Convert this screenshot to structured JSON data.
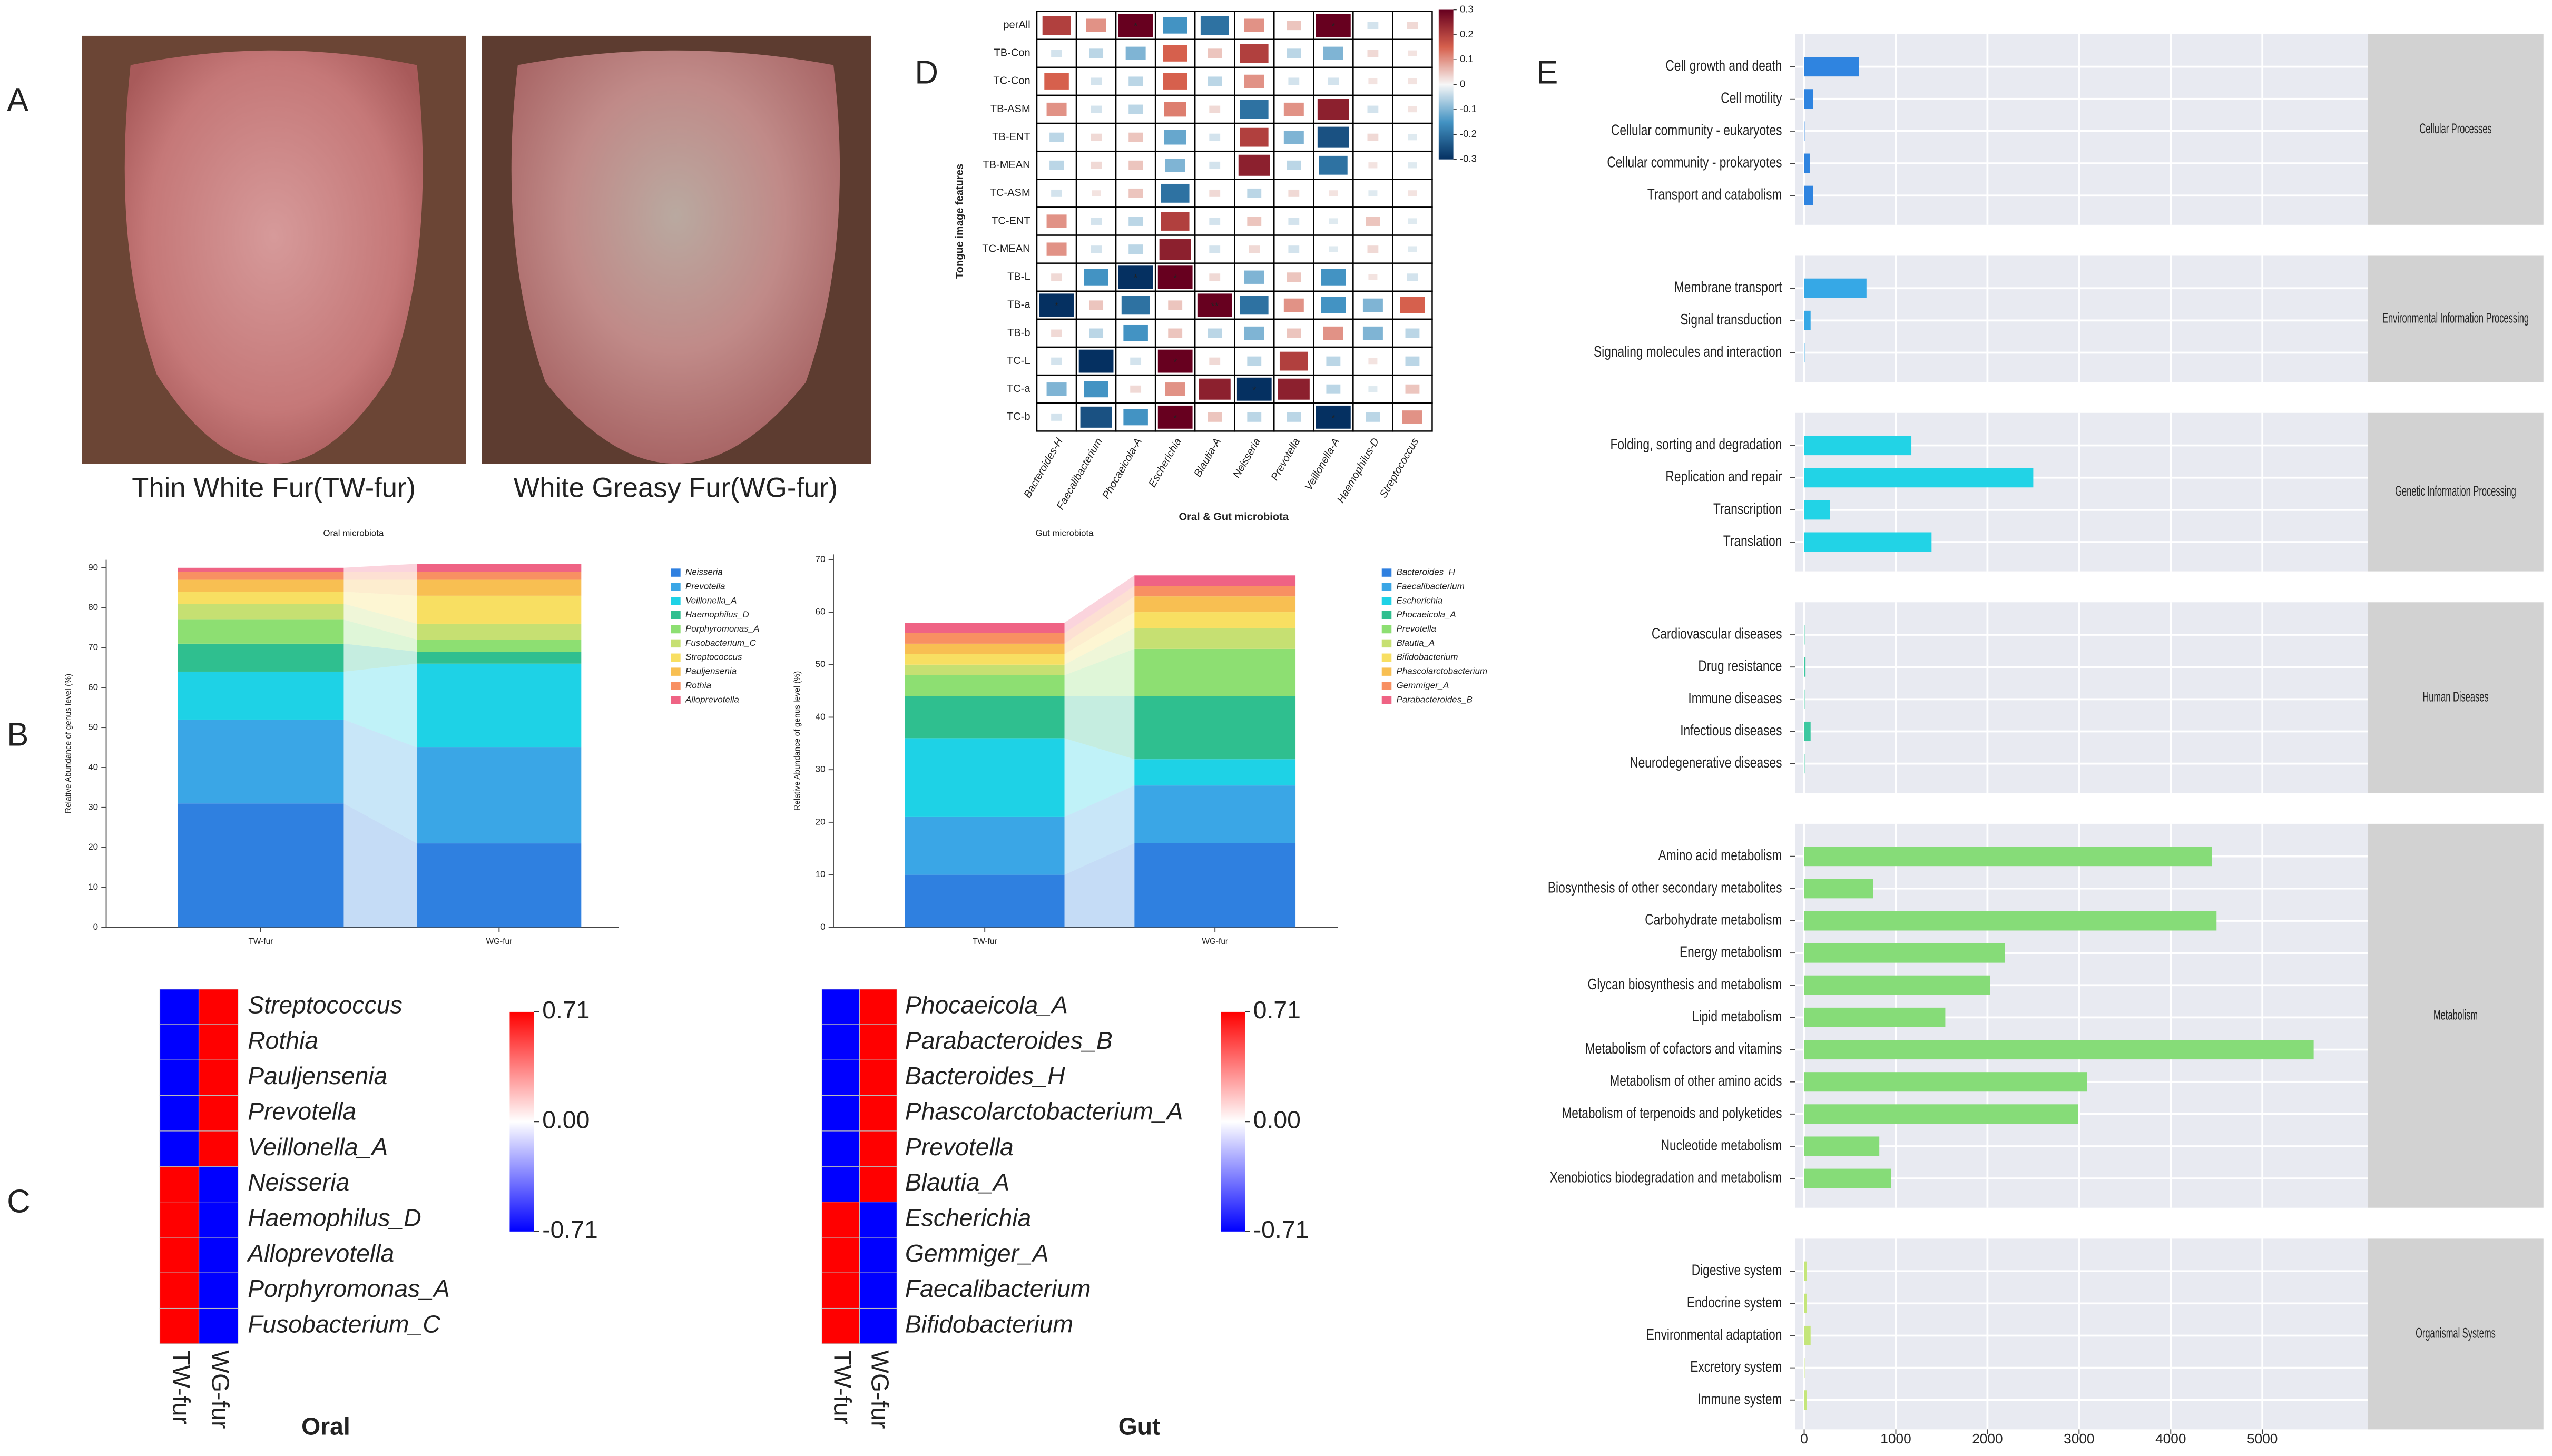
{
  "panel_labels": [
    "A",
    "B",
    "C",
    "D",
    "E"
  ],
  "photo_captions": [
    "Thin White Fur(TW-fur)",
    "White Greasy Fur(WG-fur)"
  ],
  "chart_data": [
    {
      "type": "stacked_bar",
      "title": "Oral microbiota",
      "y_label": "Relative Abundance of genus level (%)",
      "categories": [
        "TW-fur",
        "WG-fur"
      ],
      "series": [
        {
          "name": "Neisseria",
          "color": "#2f80e0",
          "values": [
            31,
            21
          ]
        },
        {
          "name": "Prevotella",
          "color": "#3aa6e6",
          "values": [
            21,
            24
          ]
        },
        {
          "name": "Veillonella_A",
          "color": "#1ed2e6",
          "values": [
            12,
            21
          ]
        },
        {
          "name": "Haemophilus_D",
          "color": "#2fbf8f",
          "values": [
            7,
            3
          ]
        },
        {
          "name": "Porphyromonas_A",
          "color": "#8ddf72",
          "values": [
            6,
            3
          ]
        },
        {
          "name": "Fusobacterium_C",
          "color": "#c6e072",
          "values": [
            4,
            4
          ]
        },
        {
          "name": "Streptococcus",
          "color": "#f8df62",
          "values": [
            3,
            7
          ]
        },
        {
          "name": "Pauljensenia",
          "color": "#f8bf52",
          "values": [
            3,
            4
          ]
        },
        {
          "name": "Rothia",
          "color": "#f89062",
          "values": [
            2,
            2
          ]
        },
        {
          "name": "Alloprevotella",
          "color": "#ef6384",
          "values": [
            1,
            2
          ]
        }
      ],
      "ylim": [
        0,
        92
      ],
      "yticks": [
        0,
        10,
        20,
        30,
        40,
        50,
        60,
        70,
        80,
        90
      ]
    },
    {
      "type": "stacked_bar",
      "title": "Gut microbiota",
      "y_label": "Relative Abundance of genus level (%)",
      "categories": [
        "TW-fur",
        "WG-fur"
      ],
      "series": [
        {
          "name": "Bacteroides_H",
          "color": "#2f80e0",
          "values": [
            10,
            16
          ]
        },
        {
          "name": "Faecalibacterium",
          "color": "#3aa6e6",
          "values": [
            11,
            11
          ]
        },
        {
          "name": "Escherichia",
          "color": "#1ed2e6",
          "values": [
            15,
            5
          ]
        },
        {
          "name": "Phocaeicola_A",
          "color": "#2fbf8f",
          "values": [
            8,
            12
          ]
        },
        {
          "name": "Prevotella",
          "color": "#8ddf72",
          "values": [
            4,
            9
          ]
        },
        {
          "name": "Blautia_A",
          "color": "#c6e072",
          "values": [
            2,
            4
          ]
        },
        {
          "name": "Bifidobacterium",
          "color": "#f8df62",
          "values": [
            2,
            3
          ]
        },
        {
          "name": "Phascolarctobacterium",
          "color": "#f8bf52",
          "values": [
            2,
            3
          ]
        },
        {
          "name": "Gemmiger_A",
          "color": "#f89062",
          "values": [
            2,
            2
          ]
        },
        {
          "name": "Parabacteroides_B",
          "color": "#ef6384",
          "values": [
            2,
            2
          ]
        }
      ],
      "ylim": [
        0,
        71
      ],
      "yticks": [
        0,
        10,
        20,
        30,
        40,
        50,
        60,
        70
      ]
    },
    {
      "type": "heatmap",
      "title": "Oral",
      "columns": [
        "TW-fur",
        "WG-fur"
      ],
      "rows": [
        "Streptococcus",
        "Rothia",
        "Pauljensenia",
        "Prevotella",
        "Veillonella_A",
        "Neisseria",
        "Haemophilus_D",
        "Alloprevotella",
        "Porphyromonas_A",
        "Fusobacterium_C"
      ],
      "values": [
        [
          -0.71,
          0.71
        ],
        [
          -0.71,
          0.71
        ],
        [
          -0.71,
          0.71
        ],
        [
          -0.71,
          0.71
        ],
        [
          -0.71,
          0.71
        ],
        [
          0.71,
          -0.71
        ],
        [
          0.71,
          -0.71
        ],
        [
          0.71,
          -0.71
        ],
        [
          0.71,
          -0.71
        ],
        [
          0.71,
          -0.71
        ]
      ],
      "colors": [
        "#0000ff",
        "#ffffff",
        "#ff0000"
      ],
      "colorbar_ticks": [
        0.71,
        {
          "value": 0,
          "label": "0.00"
        },
        -0.71
      ]
    },
    {
      "type": "heatmap",
      "title": "Gut",
      "columns": [
        "TW-fur",
        "WG-fur"
      ],
      "rows": [
        "Phocaeicola_A",
        "Parabacteroides_B",
        "Bacteroides_H",
        "Phascolarctobacterium_A",
        "Prevotella",
        "Blautia_A",
        "Escherichia",
        "Gemmiger_A",
        "Faecalibacterium",
        "Bifidobacterium"
      ],
      "values": [
        [
          -0.71,
          0.71
        ],
        [
          -0.71,
          0.71
        ],
        [
          -0.71,
          0.71
        ],
        [
          -0.71,
          0.71
        ],
        [
          -0.71,
          0.71
        ],
        [
          -0.71,
          0.71
        ],
        [
          0.71,
          -0.71
        ],
        [
          0.71,
          -0.71
        ],
        [
          0.71,
          -0.71
        ],
        [
          0.71,
          -0.71
        ]
      ],
      "colors": [
        "#0000ff",
        "#ffffff",
        "#ff0000"
      ],
      "colorbar_ticks": [
        0.71,
        {
          "value": 0,
          "label": "0.00"
        },
        -0.71
      ]
    },
    {
      "type": "correlation",
      "x_label": "Oral & Gut microbiota",
      "y_label": "Tongue image features",
      "columns": [
        "Bacteroides-H",
        "Faecalibacterium",
        "Phocaeicola-A",
        "Escherichia",
        "Blautia-A",
        "Neisseria",
        "Prevotella",
        "Veillonella-A",
        "Haemophilus-D",
        "Streptococcus"
      ],
      "rows": [
        "perAll",
        "TB-Con",
        "TC-Con",
        "TB-ASM",
        "TB-ENT",
        "TB-MEAN",
        "TC-ASM",
        "TC-ENT",
        "TC-MEAN",
        "TB-L",
        "TB-a",
        "TB-b",
        "TC-L",
        "TC-a",
        "TC-b"
      ],
      "values": [
        [
          0.2,
          0.1,
          0.3,
          -0.15,
          -0.2,
          0.1,
          0.05,
          0.3,
          -0.03,
          0.03
        ],
        [
          -0.03,
          -0.05,
          -0.1,
          0.15,
          0.05,
          0.2,
          -0.05,
          -0.1,
          0.03,
          0.02
        ],
        [
          0.15,
          -0.03,
          -0.05,
          0.15,
          -0.05,
          0.1,
          -0.03,
          -0.03,
          0.02,
          0.02
        ],
        [
          0.1,
          -0.03,
          -0.05,
          0.12,
          0.03,
          -0.2,
          0.1,
          0.25,
          -0.03,
          0.02
        ],
        [
          -0.05,
          0.03,
          0.05,
          -0.12,
          -0.03,
          0.2,
          -0.1,
          -0.25,
          0.03,
          -0.02
        ],
        [
          -0.05,
          0.03,
          0.05,
          -0.1,
          -0.03,
          0.25,
          -0.05,
          -0.2,
          0.02,
          -0.02
        ],
        [
          -0.03,
          0.02,
          0.05,
          -0.2,
          0.03,
          -0.05,
          0.03,
          0.02,
          -0.02,
          0.02
        ],
        [
          0.1,
          -0.03,
          -0.05,
          0.2,
          -0.03,
          0.05,
          -0.03,
          -0.02,
          0.05,
          -0.02
        ],
        [
          0.1,
          -0.03,
          -0.05,
          0.25,
          -0.03,
          0.03,
          -0.03,
          -0.02,
          0.03,
          -0.02
        ],
        [
          0.03,
          -0.15,
          -0.3,
          0.3,
          0.03,
          -0.1,
          0.05,
          -0.15,
          0.02,
          -0.03
        ],
        [
          -0.3,
          0.05,
          -0.2,
          0.05,
          0.3,
          -0.2,
          0.1,
          -0.15,
          -0.1,
          0.15
        ],
        [
          0.03,
          -0.05,
          -0.15,
          0.05,
          -0.05,
          -0.1,
          0.05,
          0.1,
          -0.1,
          -0.05
        ],
        [
          -0.03,
          -0.3,
          -0.03,
          0.3,
          0.03,
          -0.05,
          0.2,
          -0.05,
          0.02,
          -0.05
        ],
        [
          -0.1,
          -0.15,
          0.03,
          0.1,
          0.25,
          -0.3,
          0.25,
          -0.05,
          -0.02,
          0.05
        ],
        [
          -0.03,
          -0.25,
          -0.15,
          0.3,
          0.05,
          -0.05,
          -0.05,
          -0.3,
          -0.05,
          0.1
        ]
      ],
      "significance": [
        [
          null,
          null,
          "*",
          null,
          null,
          null,
          null,
          "*",
          null,
          null
        ],
        [
          null,
          null,
          null,
          null,
          null,
          null,
          null,
          null,
          null,
          null
        ],
        [
          null,
          null,
          null,
          null,
          null,
          null,
          null,
          null,
          null,
          null
        ],
        [
          null,
          null,
          null,
          null,
          null,
          null,
          null,
          null,
          null,
          null
        ],
        [
          null,
          null,
          null,
          null,
          null,
          null,
          null,
          null,
          null,
          null
        ],
        [
          null,
          null,
          null,
          null,
          null,
          null,
          null,
          null,
          null,
          null
        ],
        [
          null,
          null,
          null,
          null,
          null,
          null,
          null,
          null,
          null,
          null
        ],
        [
          null,
          null,
          null,
          null,
          null,
          null,
          null,
          null,
          null,
          null
        ],
        [
          null,
          null,
          null,
          null,
          null,
          null,
          null,
          null,
          null,
          null
        ],
        [
          null,
          null,
          "*",
          "*",
          null,
          null,
          null,
          null,
          null,
          null
        ],
        [
          "*",
          null,
          null,
          null,
          "**",
          null,
          null,
          null,
          null,
          null
        ],
        [
          null,
          null,
          null,
          null,
          null,
          null,
          null,
          null,
          null,
          null
        ],
        [
          null,
          null,
          null,
          "*",
          null,
          null,
          null,
          null,
          null,
          null
        ],
        [
          null,
          null,
          null,
          null,
          null,
          "*",
          null,
          null,
          null,
          null
        ],
        [
          null,
          null,
          null,
          "*",
          null,
          null,
          null,
          "*",
          null,
          null
        ]
      ],
      "colors": [
        "#053061",
        "#4393c3",
        "#f7f7f7",
        "#d6604d",
        "#67001f"
      ],
      "colorbar_ticks": [
        0.3,
        0.2,
        0.1,
        0,
        -0.1,
        -0.2,
        -0.3
      ]
    },
    {
      "type": "faceted_bar",
      "orientation": "horizontal",
      "groups": [
        {
          "name": "Cellular Processes",
          "color": "#2f84e0",
          "categories": [
            "Cell growth and death",
            "Cell motility",
            "Cellular community - eukaryotes",
            "Cellular community - prokaryotes",
            "Transport and catabolism"
          ],
          "values": [
            600,
            100,
            5,
            60,
            100
          ]
        },
        {
          "name": "Environmental Information Processing",
          "color": "#36a8e6",
          "categories": [
            "Membrane transport",
            "Signal transduction",
            "Signaling molecules and interaction"
          ],
          "values": [
            680,
            70,
            5
          ]
        },
        {
          "name": "Genetic Information Processing",
          "color": "#22d3e6",
          "categories": [
            "Folding, sorting and degradation",
            "Replication and repair",
            "Transcription",
            "Translation"
          ],
          "values": [
            1170,
            2500,
            280,
            1390
          ]
        },
        {
          "name": "Human Diseases",
          "color": "#3cc8a0",
          "categories": [
            "Cardiovascular diseases",
            "Drug resistance",
            "Immune diseases",
            "Infectious diseases",
            "Neurodegenerative diseases"
          ],
          "values": [
            5,
            15,
            5,
            70,
            5
          ]
        },
        {
          "name": "Metabolism",
          "color": "#86dc78",
          "categories": [
            "Amino acid metabolism",
            "Biosynthesis of other secondary metabolites",
            "Carbohydrate metabolism",
            "Energy metabolism",
            "Glycan biosynthesis and metabolism",
            "Lipid metabolism",
            "Metabolism of cofactors and vitamins",
            "Metabolism of other amino acids",
            "Metabolism of terpenoids and polyketides",
            "Nucleotide metabolism",
            "Xenobiotics biodegradation and metabolism"
          ],
          "values": [
            4450,
            750,
            4500,
            2190,
            2030,
            1540,
            5560,
            3090,
            2990,
            820,
            950
          ]
        },
        {
          "name": "Organismal Systems",
          "color": "#c4e67a",
          "categories": [
            "Digestive system",
            "Endocrine system",
            "Environmental adaptation",
            "Excretory system",
            "Immune system"
          ],
          "values": [
            30,
            30,
            70,
            5,
            30
          ]
        }
      ],
      "xlim": [
        -100,
        6150
      ],
      "xticks": [
        0,
        1000,
        2000,
        3000,
        4000,
        5000
      ]
    }
  ]
}
